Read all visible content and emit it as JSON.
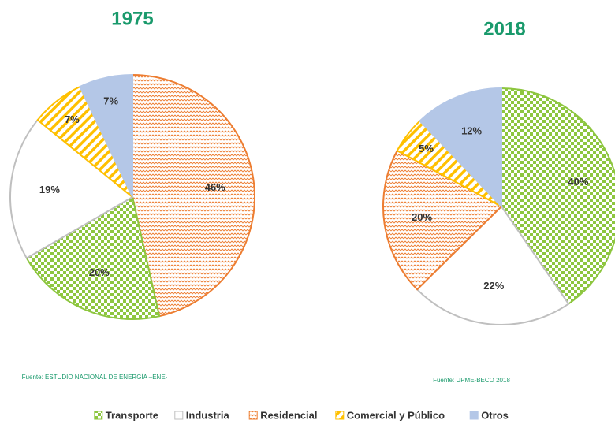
{
  "chart_data": [
    {
      "type": "pie",
      "title": "1975",
      "source": "Fuente: ESTUDIO NACIONAL DE ENERGÍA –ENE-",
      "categories": [
        "Residencial",
        "Transporte",
        "Industria",
        "Comercial y Público",
        "Otros"
      ],
      "values": [
        46,
        20,
        19,
        7,
        7
      ],
      "value_labels": [
        "46%",
        "20%",
        "19%",
        "7%",
        "7%"
      ],
      "colors": [
        "#ed7d31",
        "#8dc63f",
        "#bfbfbf",
        "#ffc000",
        "#b4c7e7"
      ],
      "patterns": [
        "zigzag",
        "checker",
        "none",
        "stripes",
        "solid"
      ]
    },
    {
      "type": "pie",
      "title": "2018",
      "source": "Fuente: UPME-BECO 2018",
      "categories": [
        "Transporte",
        "Industria",
        "Residencial",
        "Comercial y Público",
        "Otros"
      ],
      "values": [
        40,
        22,
        20,
        5,
        12
      ],
      "value_labels": [
        "40%",
        "22%",
        "20%",
        "5%",
        "12%"
      ],
      "colors": [
        "#8dc63f",
        "#bfbfbf",
        "#ed7d31",
        "#ffc000",
        "#b4c7e7"
      ],
      "patterns": [
        "checker",
        "none",
        "zigzag",
        "stripes",
        "solid"
      ]
    }
  ]
}
